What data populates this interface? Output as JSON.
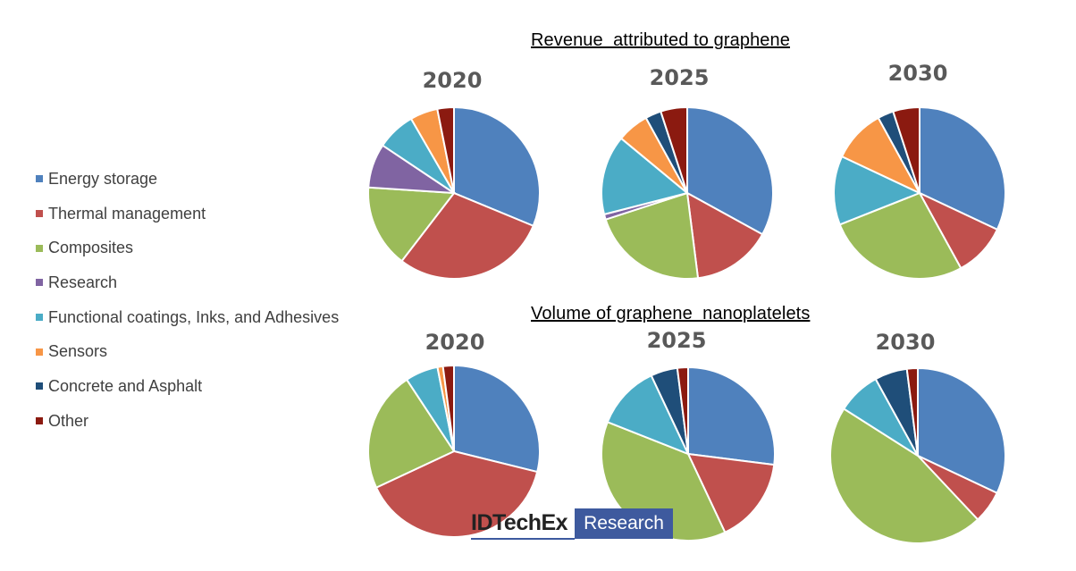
{
  "legend": [
    {
      "label": "Energy storage",
      "color": "#4f81bd"
    },
    {
      "label": "Thermal management",
      "color": "#c0504d"
    },
    {
      "label": "Composites",
      "color": "#9bbb59"
    },
    {
      "label": "Research",
      "color": "#8064a2"
    },
    {
      "label": "Functional coatings, Inks, and Adhesives",
      "color": "#4bacc6"
    },
    {
      "label": "Sensors",
      "color": "#f79646"
    },
    {
      "label": "Concrete and Asphalt",
      "color": "#1f4e79"
    },
    {
      "label": "Other",
      "color": "#8b1a10"
    }
  ],
  "sections": {
    "revenue_title": "Revenue  attributed to graphene",
    "volume_title": "Volume of graphene  nanoplatelets"
  },
  "chart_data": [
    {
      "type": "pie",
      "group": "Revenue  attributed to graphene",
      "title": "2020",
      "categories": [
        "Energy storage",
        "Thermal management",
        "Composites",
        "Research",
        "Functional coatings, Inks, and Adhesives",
        "Sensors",
        "Concrete and Asphalt",
        "Other"
      ],
      "values": [
        30,
        28,
        15,
        8,
        7,
        5,
        0,
        3
      ]
    },
    {
      "type": "pie",
      "group": "Revenue  attributed to graphene",
      "title": "2025",
      "categories": [
        "Energy storage",
        "Thermal management",
        "Composites",
        "Research",
        "Functional coatings, Inks, and Adhesives",
        "Sensors",
        "Concrete and Asphalt",
        "Other"
      ],
      "values": [
        33,
        15,
        22,
        1,
        15,
        6,
        3,
        5
      ]
    },
    {
      "type": "pie",
      "group": "Revenue  attributed to graphene",
      "title": "2030",
      "categories": [
        "Energy storage",
        "Thermal management",
        "Composites",
        "Research",
        "Functional coatings, Inks, and Adhesives",
        "Sensors",
        "Concrete and Asphalt",
        "Other"
      ],
      "values": [
        32,
        10,
        27,
        0,
        13,
        10,
        3,
        5
      ]
    },
    {
      "type": "pie",
      "group": "Volume of graphene  nanoplatelets",
      "title": "2020",
      "categories": [
        "Energy storage",
        "Thermal management",
        "Composites",
        "Research",
        "Functional coatings, Inks, and Adhesives",
        "Sensors",
        "Concrete and Asphalt",
        "Other"
      ],
      "values": [
        28,
        38,
        22,
        0,
        6,
        1,
        0,
        2
      ]
    },
    {
      "type": "pie",
      "group": "Volume of graphene  nanoplatelets",
      "title": "2025",
      "categories": [
        "Energy storage",
        "Thermal management",
        "Composites",
        "Research",
        "Functional coatings, Inks, and Adhesives",
        "Sensors",
        "Concrete and Asphalt",
        "Other"
      ],
      "values": [
        27,
        16,
        38,
        0,
        12,
        0,
        5,
        2
      ]
    },
    {
      "type": "pie",
      "group": "Volume of graphene  nanoplatelets",
      "title": "2030",
      "categories": [
        "Energy storage",
        "Thermal management",
        "Composites",
        "Research",
        "Functional coatings, Inks, and Adhesives",
        "Sensors",
        "Concrete and Asphalt",
        "Other"
      ],
      "values": [
        32,
        6,
        46,
        0,
        8,
        0,
        6,
        2
      ]
    }
  ],
  "logo": {
    "brand": "IDTechEx",
    "tag": "Research"
  }
}
